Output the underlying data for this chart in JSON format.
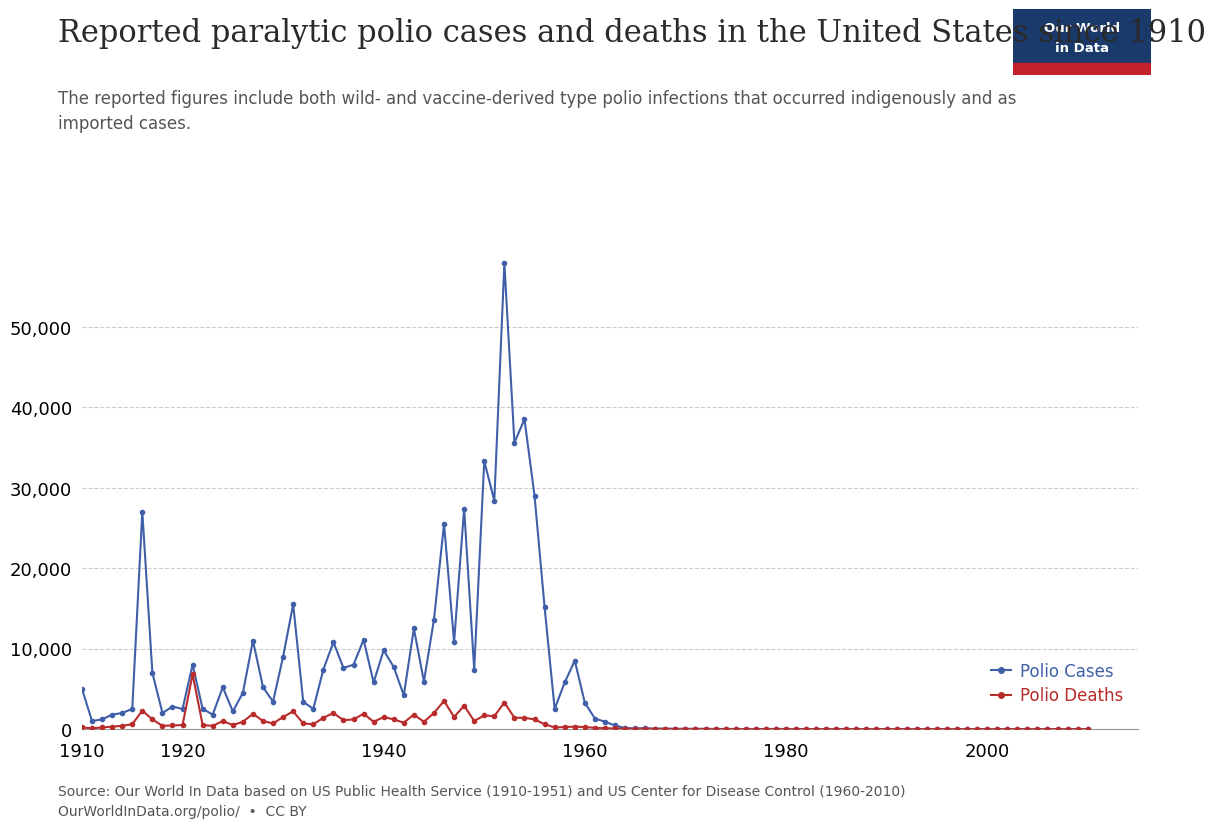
{
  "title": "Reported paralytic polio cases and deaths in the United States since 1910",
  "subtitle": "The reported figures include both wild- and vaccine-derived type polio infections that occurred indigenously and as\nimported cases.",
  "source_text": "Source: Our World In Data based on US Public Health Service (1910-1951) and US Center for Disease Control (1960-2010)\nOurWorldInData.org/polio/  •  CC BY",
  "xlim": [
    1910,
    2015
  ],
  "ylim": [
    0,
    60000
  ],
  "yticks": [
    0,
    10000,
    20000,
    30000,
    40000,
    50000
  ],
  "xticks": [
    1910,
    1920,
    1940,
    1960,
    1980,
    2000
  ],
  "line_cases_color": "#3f5fa8",
  "line_deaths_color": "#b92c2c",
  "background_color": "#ffffff",
  "logo_navy": "#1a3a6b",
  "logo_red": "#c0212a",
  "logo_text_color": "#ffffff",
  "title_color": "#2a2a2a",
  "subtitle_color": "#555555",
  "source_color": "#555555",
  "title_fontsize": 22,
  "subtitle_fontsize": 12,
  "cases_data": {
    "years": [
      1910,
      1911,
      1912,
      1913,
      1914,
      1915,
      1916,
      1917,
      1918,
      1919,
      1920,
      1921,
      1922,
      1923,
      1924,
      1925,
      1926,
      1927,
      1928,
      1929,
      1930,
      1931,
      1932,
      1933,
      1934,
      1935,
      1936,
      1937,
      1938,
      1939,
      1940,
      1941,
      1942,
      1943,
      1944,
      1945,
      1946,
      1947,
      1948,
      1949,
      1950,
      1951,
      1952,
      1953,
      1954,
      1955,
      1956,
      1957,
      1958,
      1959,
      1960,
      1961,
      1962,
      1963,
      1964,
      1965,
      1966,
      1967,
      1968,
      1969,
      1970,
      1971,
      1972,
      1973,
      1974,
      1975,
      1976,
      1977,
      1978,
      1979,
      1980,
      1981,
      1982,
      1983,
      1984,
      1985,
      1986,
      1987,
      1988,
      1989,
      1990,
      1991,
      1992,
      1993,
      1994,
      1995,
      1996,
      1997,
      1998,
      1999,
      2000,
      2001,
      2002,
      2003,
      2004,
      2005,
      2006,
      2007,
      2008,
      2009,
      2010
    ],
    "values": [
      5000,
      1000,
      1200,
      1800,
      2000,
      2500,
      27000,
      7000,
      2000,
      2800,
      2500,
      8000,
      2500,
      1800,
      5200,
      2200,
      4500,
      11000,
      5200,
      3400,
      9000,
      15500,
      3400,
      2500,
      7400,
      10800,
      7600,
      8000,
      11100,
      5800,
      9800,
      7700,
      4200,
      12500,
      5900,
      13600,
      25500,
      10800,
      27400,
      7400,
      33300,
      28400,
      57879,
      35600,
      38500,
      28985,
      15140,
      2499,
      5800,
      8500,
      3277,
      1312,
      910,
      449,
      122,
      72,
      113,
      41,
      53,
      20,
      31,
      21,
      31,
      7,
      10,
      8,
      8,
      9,
      8,
      11,
      9,
      4,
      5,
      5,
      8,
      7,
      8,
      6,
      7,
      5,
      7,
      8,
      7,
      6,
      8,
      7,
      6,
      5,
      4,
      5,
      5,
      5,
      4,
      4,
      4,
      4,
      4,
      4,
      4,
      4,
      4
    ]
  },
  "deaths_data": {
    "years": [
      1910,
      1911,
      1912,
      1913,
      1914,
      1915,
      1916,
      1917,
      1918,
      1919,
      1920,
      1921,
      1922,
      1923,
      1924,
      1925,
      1926,
      1927,
      1928,
      1929,
      1930,
      1931,
      1932,
      1933,
      1934,
      1935,
      1936,
      1937,
      1938,
      1939,
      1940,
      1941,
      1942,
      1943,
      1944,
      1945,
      1946,
      1947,
      1948,
      1949,
      1950,
      1951,
      1952,
      1953,
      1954,
      1955,
      1956,
      1957,
      1958,
      1959,
      1960,
      1961,
      1962,
      1963,
      1964,
      1965,
      1966,
      1967,
      1968,
      1969,
      1970,
      1971,
      1972,
      1973,
      1974,
      1975,
      1976,
      1977,
      1978,
      1979,
      1980,
      1981,
      1982,
      1983,
      1984,
      1985,
      1986,
      1987,
      1988,
      1989,
      1990,
      1991,
      1992,
      1993,
      1994,
      1995,
      1996,
      1997,
      1998,
      1999,
      2000,
      2001,
      2002,
      2003,
      2004,
      2005,
      2006,
      2007,
      2008,
      2009,
      2010
    ],
    "values": [
      200,
      100,
      200,
      300,
      400,
      600,
      2300,
      1200,
      400,
      450,
      500,
      6800,
      500,
      400,
      1000,
      500,
      900,
      1900,
      1000,
      700,
      1500,
      2200,
      700,
      600,
      1400,
      2000,
      1100,
      1200,
      1900,
      900,
      1500,
      1200,
      800,
      1800,
      900,
      2000,
      3500,
      1500,
      2900,
      1000,
      1700,
      1600,
      3300,
      1400,
      1400,
      1200,
      600,
      200,
      250,
      300,
      250,
      150,
      100,
      80,
      50,
      40,
      50,
      30,
      25,
      20,
      15,
      12,
      10,
      8,
      8,
      6,
      6,
      6,
      5,
      6,
      5,
      5,
      4,
      4,
      4,
      4,
      4,
      4,
      3,
      3,
      3,
      3,
      3,
      3,
      3,
      3,
      3,
      3,
      3,
      3,
      3,
      3,
      3,
      3,
      3,
      3,
      3,
      3,
      3,
      3,
      3
    ]
  }
}
